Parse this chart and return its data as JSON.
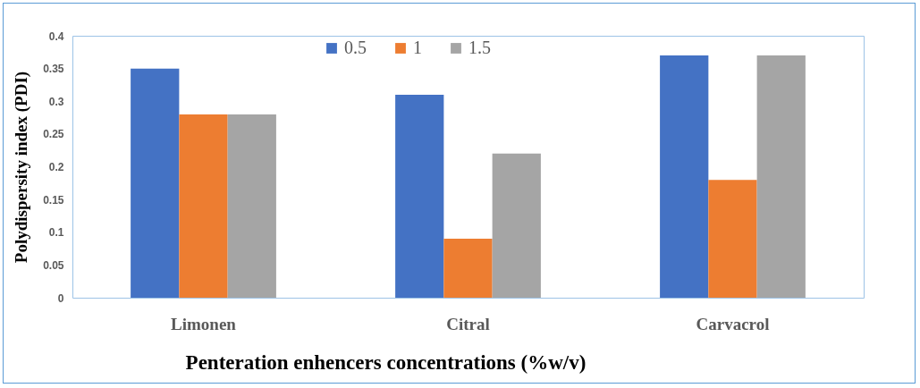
{
  "chart_data": {
    "type": "bar",
    "xlabel": "Penteration enhencers concentrations (%w/v)",
    "ylabel": "Polydispersity index (PDI)",
    "categories": [
      "Limonen",
      "Citral",
      "Carvacrol"
    ],
    "series": [
      {
        "name": "0.5",
        "color": "#4472c4",
        "values": [
          0.35,
          0.31,
          0.37
        ]
      },
      {
        "name": "1",
        "color": "#ed7d31",
        "values": [
          0.28,
          0.09,
          0.18
        ]
      },
      {
        "name": "1.5",
        "color": "#a5a5a5",
        "values": [
          0.28,
          0.22,
          0.37
        ]
      }
    ],
    "ylim": [
      0,
      0.4
    ],
    "yticks": [
      0,
      0.05,
      0.1,
      0.15,
      0.2,
      0.25,
      0.3,
      0.35,
      0.4
    ],
    "grid": false,
    "legend": "top"
  }
}
